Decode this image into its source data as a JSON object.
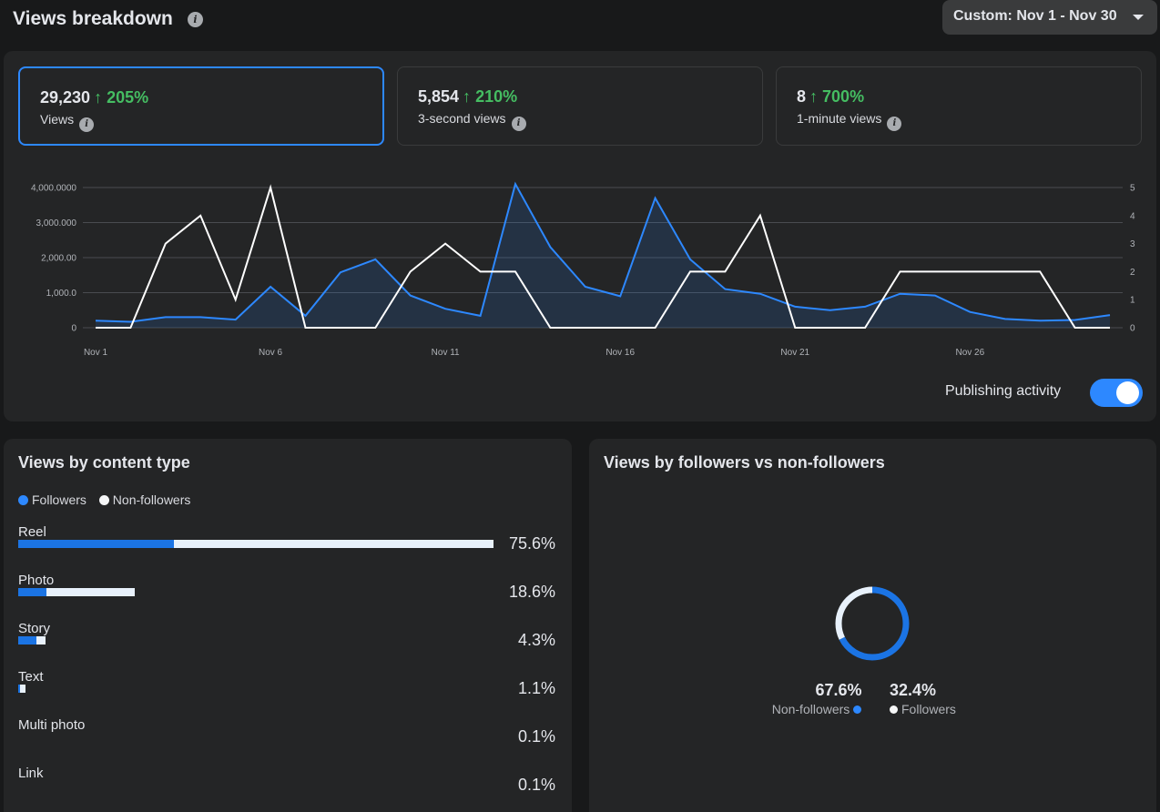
{
  "header": {
    "title": "Views breakdown",
    "date_range": "Custom: Nov 1 - Nov 30"
  },
  "metrics": [
    {
      "value": "29,230",
      "change": "205%",
      "label": "Views",
      "selected": true
    },
    {
      "value": "5,854",
      "change": "210%",
      "label": "3-second views",
      "selected": false
    },
    {
      "value": "8",
      "change": "700%",
      "label": "1-minute views",
      "selected": false
    }
  ],
  "colors": {
    "accent": "#2d88ff",
    "positive": "#45bd62",
    "series_views": "#2d88ff",
    "series_publishing": "#ffffff"
  },
  "chart_data": {
    "type": "line",
    "x": [
      "Nov 1",
      "Nov 2",
      "Nov 3",
      "Nov 4",
      "Nov 5",
      "Nov 6",
      "Nov 7",
      "Nov 8",
      "Nov 9",
      "Nov 10",
      "Nov 11",
      "Nov 12",
      "Nov 13",
      "Nov 14",
      "Nov 15",
      "Nov 16",
      "Nov 17",
      "Nov 18",
      "Nov 19",
      "Nov 20",
      "Nov 21",
      "Nov 22",
      "Nov 23",
      "Nov 24",
      "Nov 25",
      "Nov 26",
      "Nov 27",
      "Nov 28",
      "Nov 29",
      "Nov 30"
    ],
    "xticks": [
      "Nov 1",
      "Nov 6",
      "Nov 11",
      "Nov 16",
      "Nov 21",
      "Nov 26"
    ],
    "yticks_left": [
      "0",
      "1,000.0",
      "2,000.00",
      "3,000.000",
      "4,000.0000"
    ],
    "yticks_right": [
      "0",
      "1",
      "2",
      "3",
      "4",
      "5"
    ],
    "ylim_left": [
      0,
      4000
    ],
    "ylim_right": [
      0,
      5
    ],
    "grid": true,
    "series": [
      {
        "axis": "left",
        "color": "#2d88ff",
        "fill": true,
        "values": [
          200,
          170,
          300,
          300,
          230,
          1170,
          340,
          1580,
          1950,
          920,
          540,
          340,
          4100,
          2300,
          1170,
          900,
          3700,
          1950,
          1100,
          970,
          600,
          500,
          600,
          970,
          920,
          450,
          250,
          200,
          220,
          360
        ]
      },
      {
        "axis": "right",
        "color": "#ffffff",
        "fill": false,
        "values": [
          0,
          0,
          3,
          4,
          1,
          5,
          0,
          0,
          0,
          2,
          3,
          2,
          2,
          0,
          0,
          0,
          0,
          2,
          2,
          4,
          0,
          0,
          0,
          2,
          2,
          2,
          2,
          2,
          0,
          0
        ]
      }
    ]
  },
  "publishing_toggle": {
    "label": "Publishing activity",
    "on": true
  },
  "content_type": {
    "title": "Views by content type",
    "legend": {
      "followers": "Followers",
      "non_followers": "Non-followers"
    },
    "rows": [
      {
        "label": "Reel",
        "pct": "75.6%",
        "total": 75.6,
        "followers": 24.7
      },
      {
        "label": "Photo",
        "pct": "18.6%",
        "total": 18.6,
        "followers": 4.5
      },
      {
        "label": "Story",
        "pct": "4.3%",
        "total": 4.3,
        "followers": 2.9
      },
      {
        "label": "Text",
        "pct": "1.1%",
        "total": 1.1,
        "followers": 0.2
      },
      {
        "label": "Multi photo",
        "pct": "0.1%",
        "total": 0.0,
        "followers": 0.0
      },
      {
        "label": "Link",
        "pct": "0.1%",
        "total": 0.0,
        "followers": 0.0
      }
    ]
  },
  "followers_split": {
    "title": "Views by followers vs non-followers",
    "non_followers": {
      "pct": "67.6%",
      "label": "Non-followers",
      "value": 67.6
    },
    "followers": {
      "pct": "32.4%",
      "label": "Followers",
      "value": 32.4
    }
  }
}
